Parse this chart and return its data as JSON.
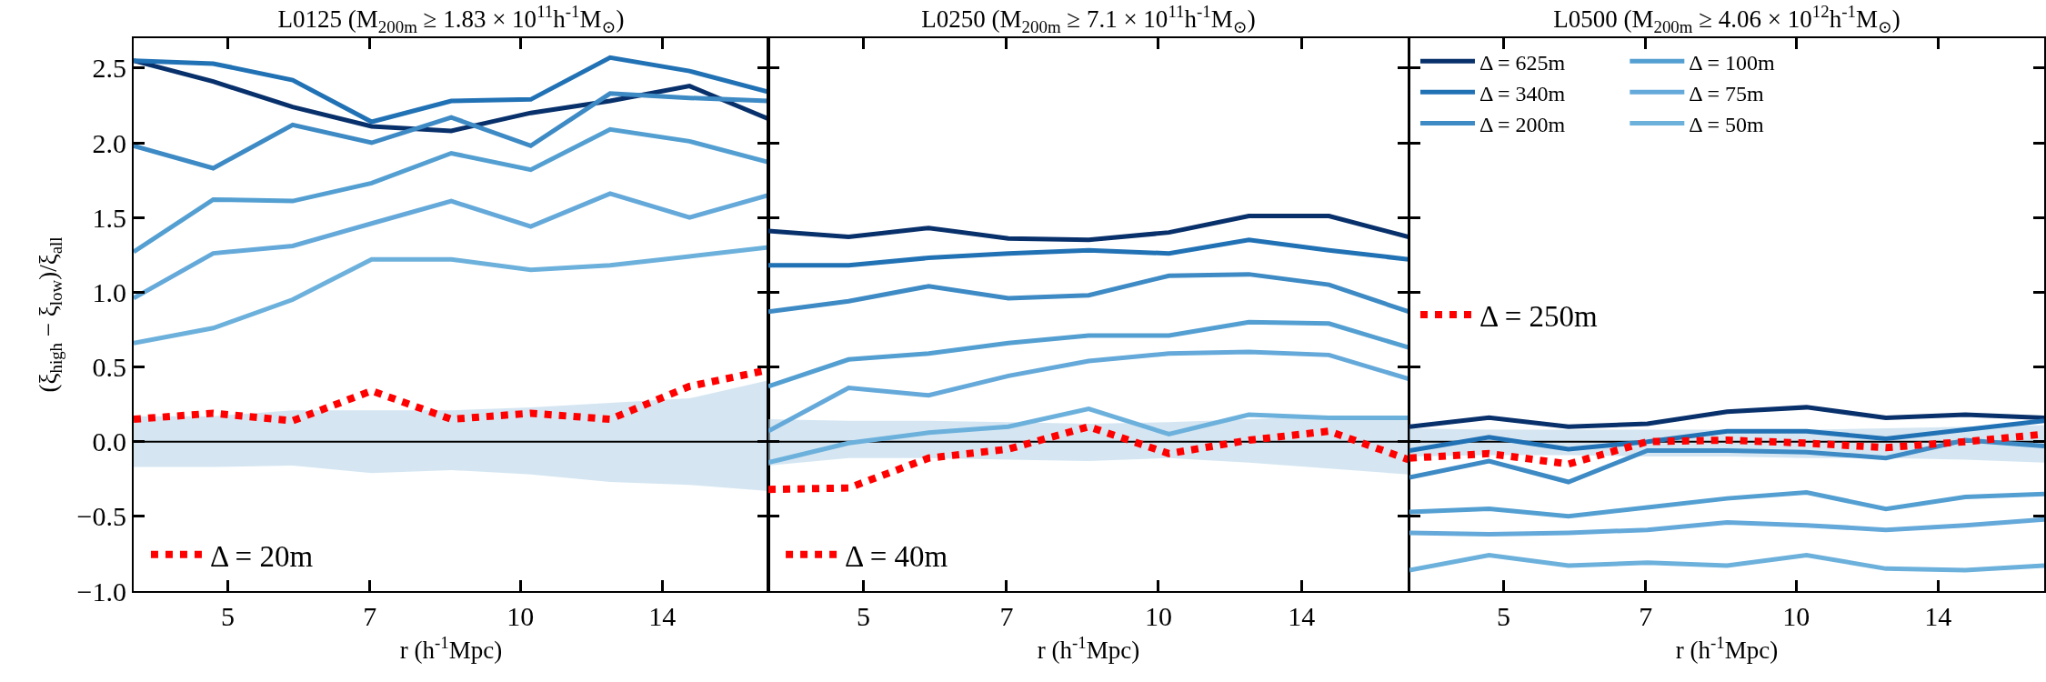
{
  "chart_data": [
    {
      "type": "line",
      "title": "L0125 (M$_{200m}$ ≥ 1.83 × 10$^{11}$h$^{-1}$M$_{⊙}$)",
      "xlabel": "r (h$^{-1}$Mpc)",
      "ylabel": "(ξ$_{high}$ − ξ$_{low}$)/ξ$_{all}$",
      "log": "x",
      "legend": "bottom left",
      "x": [
        4.0,
        4.83,
        5.83,
        7.03,
        8.49,
        10.25,
        12.37,
        14.93,
        18.0
      ],
      "xlim": [
        4,
        18
      ],
      "xticks": [
        5,
        7,
        10,
        14
      ],
      "ylim": [
        -1,
        2.7
      ],
      "yticks": [
        {
          "value": -1,
          "label": "−1.0"
        },
        {
          "value": -0.5,
          "label": "−0.5"
        },
        {
          "value": 0,
          "label": "0.0"
        },
        {
          "value": 0.5,
          "label": "0.5"
        },
        {
          "value": 1,
          "label": "1.0"
        },
        {
          "value": 1.5,
          "label": "1.5"
        },
        {
          "value": 2,
          "label": "2.0"
        },
        {
          "value": 2.5,
          "label": "2.5"
        }
      ],
      "series": [
        {
          "color": "#000000",
          "line_style": "solid",
          "values": [
            0,
            0,
            0,
            0,
            0,
            0,
            0,
            0,
            0
          ],
          "lower": [
            -0.17,
            -0.17,
            -0.16,
            -0.21,
            -0.19,
            -0.22,
            -0.27,
            -0.29,
            -0.33
          ],
          "upper": [
            0.17,
            0.17,
            0.21,
            0.21,
            0.21,
            0.23,
            0.26,
            0.29,
            0.41
          ]
        },
        {
          "color": "#08306b",
          "line_style": "solid",
          "values": [
            2.55,
            2.41,
            2.24,
            2.11,
            2.08,
            2.2,
            2.28,
            2.38,
            2.16
          ]
        },
        {
          "color": "#2171b5",
          "line_style": "solid",
          "values": [
            2.55,
            2.53,
            2.42,
            2.14,
            2.28,
            2.29,
            2.57,
            2.48,
            2.34
          ]
        },
        {
          "color": "#3d8ac5",
          "line_style": "solid",
          "values": [
            1.98,
            1.83,
            2.12,
            2.0,
            2.17,
            1.98,
            2.33,
            2.3,
            2.28
          ]
        },
        {
          "color": "#549fd2",
          "line_style": "solid",
          "values": [
            1.27,
            1.62,
            1.61,
            1.73,
            1.93,
            1.82,
            2.09,
            2.01,
            1.87
          ]
        },
        {
          "color": "#64a9d9",
          "line_style": "solid",
          "values": [
            0.96,
            1.26,
            1.31,
            1.46,
            1.61,
            1.44,
            1.66,
            1.5,
            1.65
          ]
        },
        {
          "color": "#6cb0dc",
          "line_style": "solid",
          "values": [
            0.66,
            0.76,
            0.95,
            1.22,
            1.22,
            1.15,
            1.18,
            1.24,
            1.3
          ]
        },
        {
          "name": "Δ = 20m",
          "color": "#ff0000",
          "line_style": "dotted",
          "values": [
            0.15,
            0.19,
            0.14,
            0.34,
            0.15,
            0.19,
            0.15,
            0.37,
            0.48
          ]
        }
      ]
    },
    {
      "type": "line",
      "title": "L0250 (M$_{200m}$ ≥ 7.1 × 10$^{11}$h$^{-1}$M$_{⊙}$)",
      "xlabel": "r (h$^{-1}$Mpc)",
      "log": "x",
      "legend": "bottom left",
      "tick_labels": "x",
      "x": [
        4.0,
        4.83,
        5.83,
        7.03,
        8.49,
        10.25,
        12.37,
        14.93,
        18.0
      ],
      "xlim": [
        4,
        18
      ],
      "xticks": [
        5,
        7,
        10,
        14
      ],
      "ylim": [
        -1,
        2.7
      ],
      "yticks": [
        -1,
        -0.5,
        0,
        0.5,
        1,
        1.5,
        2,
        2.5
      ],
      "series": [
        {
          "color": "#000000",
          "line_style": "solid",
          "values": [
            0,
            0,
            0,
            0,
            0,
            0,
            0,
            0,
            0
          ],
          "lower": [
            -0.16,
            -0.11,
            -0.11,
            -0.12,
            -0.13,
            -0.11,
            -0.14,
            -0.18,
            -0.22
          ],
          "upper": [
            0.15,
            0.14,
            0.14,
            0.13,
            0.12,
            0.13,
            0.15,
            0.17,
            0.17
          ]
        },
        {
          "color": "#08306b",
          "line_style": "solid",
          "values": [
            1.41,
            1.37,
            1.43,
            1.36,
            1.35,
            1.4,
            1.51,
            1.51,
            1.37
          ]
        },
        {
          "color": "#2171b5",
          "line_style": "solid",
          "values": [
            1.18,
            1.18,
            1.23,
            1.26,
            1.28,
            1.26,
            1.35,
            1.28,
            1.22
          ]
        },
        {
          "color": "#3d8ac5",
          "line_style": "solid",
          "values": [
            0.87,
            0.94,
            1.04,
            0.96,
            0.98,
            1.11,
            1.12,
            1.05,
            0.87
          ]
        },
        {
          "color": "#549fd2",
          "line_style": "solid",
          "values": [
            0.37,
            0.55,
            0.59,
            0.66,
            0.71,
            0.71,
            0.8,
            0.79,
            0.63
          ]
        },
        {
          "color": "#64a9d9",
          "line_style": "solid",
          "values": [
            0.07,
            0.36,
            0.31,
            0.44,
            0.54,
            0.59,
            0.6,
            0.58,
            0.42
          ]
        },
        {
          "color": "#6cb0dc",
          "line_style": "solid",
          "values": [
            -0.14,
            -0.01,
            0.06,
            0.1,
            0.22,
            0.05,
            0.18,
            0.16,
            0.16
          ]
        },
        {
          "name": "Δ = 40m",
          "color": "#ff0000",
          "line_style": "dotted",
          "values": [
            -0.32,
            -0.31,
            -0.11,
            -0.05,
            0.1,
            -0.08,
            0.01,
            0.07,
            -0.12
          ]
        }
      ]
    },
    {
      "type": "line",
      "title": "L0500 (M$_{200m}$ ≥ 4.06 × 10$^{12}$h$^{-1}$M$_{⊙}$)",
      "xlabel": "r (h$^{-1}$Mpc)",
      "log": "x",
      "legend": "top left",
      "tick_labels": "x",
      "x": [
        4.0,
        4.83,
        5.83,
        7.03,
        8.49,
        10.25,
        12.37,
        14.93,
        18.0
      ],
      "xlim": [
        4,
        18
      ],
      "xticks": [
        5,
        7,
        10,
        14
      ],
      "ylim": [
        -1,
        2.7
      ],
      "yticks": [
        -1,
        -0.5,
        0,
        0.5,
        1,
        1.5,
        2,
        2.5
      ],
      "series": [
        {
          "color": "#000000",
          "line_style": "solid",
          "values": [
            0,
            0,
            0,
            0,
            0,
            0,
            0,
            0,
            0
          ],
          "lower": [
            -0.1,
            -0.09,
            -0.09,
            -0.1,
            -0.1,
            -0.11,
            -0.11,
            -0.12,
            -0.14
          ],
          "upper": [
            0.09,
            0.08,
            0.08,
            0.08,
            0.08,
            0.08,
            0.09,
            0.1,
            0.11
          ]
        },
        {
          "name": "Δ = 625m",
          "color": "#08306b",
          "line_style": "solid",
          "values": [
            0.1,
            0.16,
            0.1,
            0.12,
            0.2,
            0.23,
            0.16,
            0.18,
            0.16
          ]
        },
        {
          "name": "Δ = 340m",
          "color": "#2171b5",
          "line_style": "solid",
          "values": [
            -0.06,
            0.03,
            -0.05,
            0.0,
            0.07,
            0.07,
            0.02,
            0.08,
            0.14
          ]
        },
        {
          "name": "Δ = 200m",
          "color": "#3d8ac5",
          "line_style": "solid",
          "values": [
            -0.24,
            -0.13,
            -0.27,
            -0.06,
            -0.06,
            -0.07,
            -0.11,
            0.01,
            -0.03
          ]
        },
        {
          "name": "Δ = 100m",
          "color": "#549fd2",
          "line_style": "solid",
          "values": [
            -0.47,
            -0.45,
            -0.5,
            -0.44,
            -0.38,
            -0.34,
            -0.45,
            -0.37,
            -0.35
          ]
        },
        {
          "name": "Δ = 75m",
          "color": "#64a9d9",
          "line_style": "solid",
          "values": [
            -0.61,
            -0.62,
            -0.61,
            -0.59,
            -0.54,
            -0.56,
            -0.59,
            -0.56,
            -0.52
          ]
        },
        {
          "name": "Δ = 50m",
          "color": "#6cb0dc",
          "line_style": "solid",
          "values": [
            -0.86,
            -0.76,
            -0.83,
            -0.81,
            -0.83,
            -0.76,
            -0.85,
            -0.86,
            -0.83
          ]
        },
        {
          "name": "Δ = 250m",
          "color": "#ff0000",
          "line_style": "dotted",
          "values": [
            -0.11,
            -0.08,
            -0.15,
            0.0,
            0.01,
            -0.01,
            -0.04,
            0.0,
            0.05
          ]
        }
      ]
    }
  ]
}
